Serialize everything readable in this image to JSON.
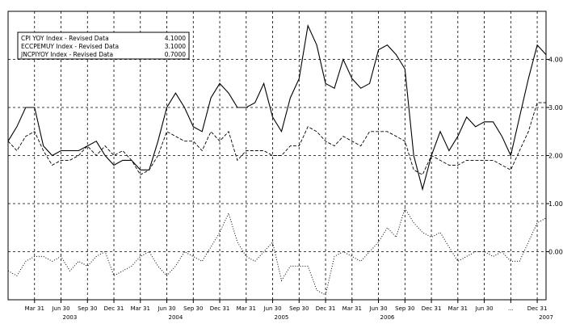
{
  "chart_data": {
    "type": "line",
    "title": "",
    "xlabel": "",
    "ylabel": "",
    "ylim": [
      -1.0,
      5.0
    ],
    "yticks": [
      {
        "value": 4.0,
        "label": "4.00"
      },
      {
        "value": 3.0,
        "label": "3.00"
      },
      {
        "value": 2.0,
        "label": "2.00"
      },
      {
        "value": 1.0,
        "label": "1.00"
      },
      {
        "value": 0.0,
        "label": "0.00"
      }
    ],
    "xticks": [
      {
        "index": 3,
        "label": "Mar 31"
      },
      {
        "index": 6,
        "label": "Jun 30"
      },
      {
        "index": 9,
        "label": "Sep 30"
      },
      {
        "index": 12,
        "label": "Dec 31"
      },
      {
        "index": 15,
        "label": "Mar 31"
      },
      {
        "index": 18,
        "label": "Jun 30"
      },
      {
        "index": 21,
        "label": "Sep 30"
      },
      {
        "index": 24,
        "label": "Dec 31"
      },
      {
        "index": 27,
        "label": "Mar 31"
      },
      {
        "index": 30,
        "label": "Jun 30"
      },
      {
        "index": 33,
        "label": "Sep 30"
      },
      {
        "index": 36,
        "label": "Dec 31"
      },
      {
        "index": 39,
        "label": "Mar 31"
      },
      {
        "index": 42,
        "label": "Jun 30"
      },
      {
        "index": 45,
        "label": "Sep 30"
      },
      {
        "index": 48,
        "label": "Dec 31"
      },
      {
        "index": 51,
        "label": "Mar 31"
      },
      {
        "index": 54,
        "label": "Jun 30"
      },
      {
        "index": 57,
        "label": "..."
      },
      {
        "index": 60,
        "label": "Dec 31"
      }
    ],
    "years": [
      {
        "index": 7,
        "label": "2003"
      },
      {
        "index": 19,
        "label": "2004"
      },
      {
        "index": 31,
        "label": "2005"
      },
      {
        "index": 43,
        "label": "2006"
      },
      {
        "index": 61,
        "label": "2007"
      }
    ],
    "series": [
      {
        "name": "CPI YOY Index - Revised Data",
        "last_value": "4.1000",
        "style": "solid",
        "values": [
          2.3,
          2.6,
          3.0,
          3.0,
          2.2,
          2.0,
          2.1,
          2.1,
          2.1,
          2.2,
          2.3,
          2.0,
          1.8,
          1.9,
          1.9,
          1.7,
          1.7,
          2.3,
          3.0,
          3.3,
          3.0,
          2.6,
          2.5,
          3.2,
          3.5,
          3.3,
          3.0,
          3.0,
          3.1,
          3.5,
          2.8,
          2.5,
          3.2,
          3.6,
          4.7,
          4.3,
          3.5,
          3.4,
          4.0,
          3.6,
          3.4,
          3.5,
          4.2,
          4.3,
          4.1,
          3.8,
          2.0,
          1.3,
          2.0,
          2.5,
          2.1,
          2.4,
          2.8,
          2.6,
          2.7,
          2.7,
          2.4,
          2.0,
          2.8,
          3.6,
          4.3,
          4.1
        ]
      },
      {
        "name": "ECCPEMUY Index - Revised Data",
        "last_value": "3.1000",
        "style": "dashed",
        "values": [
          2.3,
          2.1,
          2.4,
          2.5,
          2.1,
          1.8,
          1.9,
          1.9,
          2.0,
          2.2,
          2.0,
          2.2,
          2.0,
          2.1,
          1.9,
          1.6,
          1.7,
          2.0,
          2.5,
          2.4,
          2.3,
          2.3,
          2.1,
          2.5,
          2.3,
          2.5,
          1.9,
          2.1,
          2.1,
          2.1,
          2.0,
          2.0,
          2.2,
          2.2,
          2.6,
          2.5,
          2.3,
          2.2,
          2.4,
          2.3,
          2.2,
          2.5,
          2.5,
          2.5,
          2.4,
          2.3,
          1.7,
          1.6,
          2.0,
          1.9,
          1.8,
          1.8,
          1.9,
          1.9,
          1.9,
          1.9,
          1.8,
          1.7,
          2.1,
          2.5,
          3.1,
          3.1
        ]
      },
      {
        "name": "JNCPIYOY Index - Revised Data",
        "last_value": "0.7000",
        "style": "dotted",
        "values": [
          -0.4,
          -0.5,
          -0.2,
          -0.1,
          -0.1,
          -0.2,
          -0.1,
          -0.4,
          -0.2,
          -0.3,
          -0.1,
          0.0,
          -0.5,
          -0.4,
          -0.3,
          -0.1,
          0.0,
          -0.3,
          -0.5,
          -0.3,
          0.0,
          -0.1,
          -0.2,
          0.1,
          0.4,
          0.8,
          0.2,
          -0.1,
          -0.2,
          0.0,
          0.2,
          -0.6,
          -0.3,
          -0.3,
          -0.3,
          -0.8,
          -0.9,
          -0.1,
          0.0,
          -0.1,
          -0.2,
          0.0,
          0.2,
          0.5,
          0.3,
          0.9,
          0.6,
          0.4,
          0.3,
          0.4,
          0.1,
          -0.2,
          -0.1,
          0.0,
          0.0,
          -0.1,
          0.0,
          -0.2,
          -0.2,
          0.2,
          0.6,
          0.7
        ]
      }
    ],
    "grid": true,
    "legend": "top-left"
  }
}
